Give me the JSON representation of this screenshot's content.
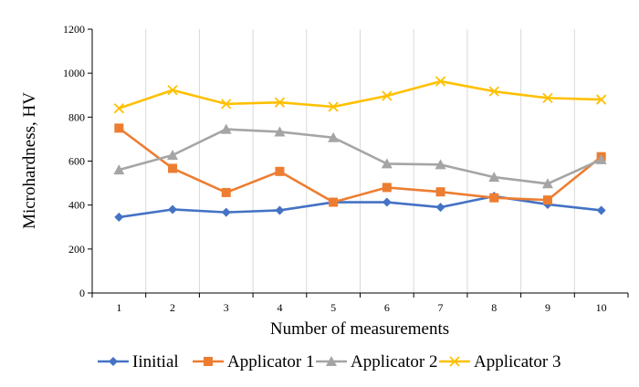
{
  "chart_data": {
    "type": "line",
    "title": "",
    "xlabel": "Number of measurements",
    "ylabel": "Microhardness, HV",
    "categories": [
      "1",
      "2",
      "3",
      "4",
      "5",
      "6",
      "7",
      "8",
      "9",
      "10"
    ],
    "ylim": [
      0,
      1200
    ],
    "yticks": [
      0,
      200,
      400,
      600,
      800,
      1000,
      1200
    ],
    "vertical_gridlines": true,
    "legend_position": "bottom",
    "series": [
      {
        "name": "Iinitial",
        "color": "#4472C4",
        "marker": "diamond",
        "values": [
          345,
          380,
          367,
          376,
          413,
          413,
          390,
          440,
          403,
          376
        ]
      },
      {
        "name": "Applicator 1",
        "color": "#ED7D31",
        "marker": "square",
        "values": [
          750,
          567,
          457,
          553,
          413,
          480,
          460,
          433,
          423,
          620
        ]
      },
      {
        "name": "Applicator 2",
        "color": "#A5A5A5",
        "marker": "triangle",
        "values": [
          560,
          627,
          745,
          733,
          707,
          588,
          584,
          527,
          497,
          607
        ]
      },
      {
        "name": "Applicator 3",
        "color": "#FFC000",
        "marker": "x",
        "values": [
          840,
          923,
          860,
          867,
          847,
          897,
          963,
          917,
          887,
          880
        ]
      }
    ]
  }
}
